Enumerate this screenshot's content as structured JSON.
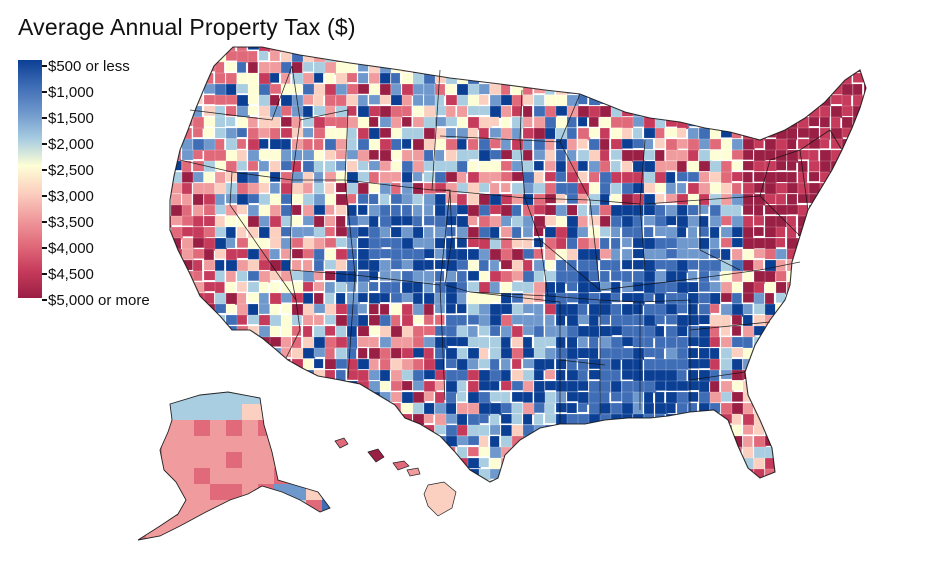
{
  "title": "Average Annual Property Tax ($)",
  "legend": {
    "items": [
      "$500 or less",
      "$1,000",
      "$1,500",
      "$2,000",
      "$2,500",
      "$3,000",
      "$3,500",
      "$4,000",
      "$4,500",
      "$5,000 or more"
    ]
  },
  "colors": {
    "low": "#0b3f94",
    "c1000": "#3f6db6",
    "c1500": "#6f98cc",
    "c2000": "#a9cde1",
    "mid": "#fefed6",
    "c3000": "#fbd0c0",
    "c3500": "#f09b9d",
    "c4000": "#e06a7a",
    "c4500": "#c63a5b",
    "high": "#9a1f45"
  },
  "regions": {
    "contiguous_us": "contiguous-us",
    "alaska": "alaska",
    "hawaii": "hawaii"
  }
}
